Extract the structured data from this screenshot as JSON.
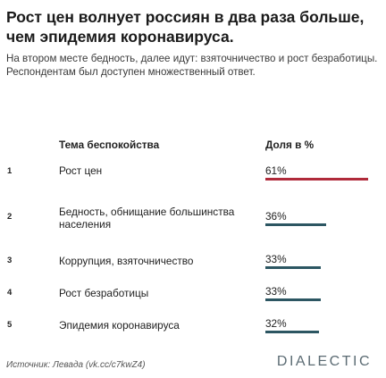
{
  "header": {
    "title": "Рост цен волнует россиян в два раза больше, чем эпидемия коронавируса.",
    "subtitle": "На втором месте бедность, далее идут: взяточничество и рост безработицы. Респондентам был доступен множественный ответ."
  },
  "table": {
    "col_topic": "Тема беспокойства",
    "col_share": "Доля в %"
  },
  "chart_data": {
    "type": "bar",
    "orientation": "horizontal",
    "categories": [
      "Рост цен",
      "Бедность, обнищание большинства населения",
      "Коррупция, взяточничество",
      "Рост безработицы",
      "Эпидемия коронавируса"
    ],
    "ranks": [
      "1",
      "2",
      "3",
      "4",
      "5"
    ],
    "values": [
      61,
      36,
      33,
      33,
      32
    ],
    "value_labels": [
      "61%",
      "36%",
      "33%",
      "33%",
      "32%"
    ],
    "colors": [
      "#b02a3a",
      "#2c5662",
      "#2c5662",
      "#2c5662",
      "#2c5662"
    ],
    "xlim": [
      0,
      61
    ]
  },
  "footer": {
    "source": "Источник: Левада (vk.cc/c7kwZ4)",
    "brand": "DIALECTIC"
  }
}
